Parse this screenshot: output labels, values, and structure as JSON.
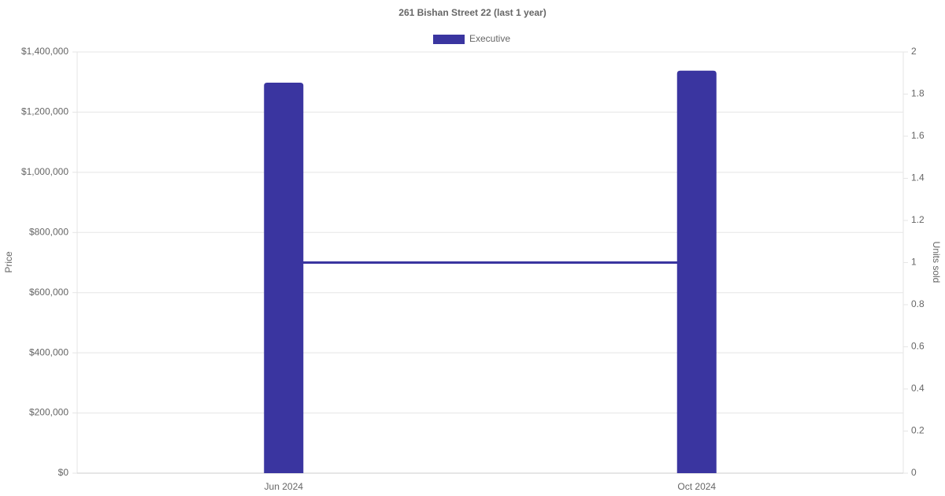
{
  "chart_data": {
    "type": "bar",
    "title": "261 Bishan Street 22 (last 1 year)",
    "categories": [
      "Jun 2024",
      "Oct 2024"
    ],
    "series": [
      {
        "name": "Executive",
        "type": "bar",
        "color": "#3a35a0",
        "values": [
          1298000,
          1338000
        ]
      },
      {
        "type": "line",
        "axis": "y2",
        "color": "#3a35a0",
        "values": [
          1,
          1
        ]
      }
    ],
    "ylabel": "Price",
    "y2label": "Units sold",
    "ylim": [
      0,
      1400000
    ],
    "yticks": [
      {
        "value": 0,
        "label": "$0"
      },
      {
        "value": 200000,
        "label": "$200,000"
      },
      {
        "value": 400000,
        "label": "$400,000"
      },
      {
        "value": 600000,
        "label": "$600,000"
      },
      {
        "value": 800000,
        "label": "$800,000"
      },
      {
        "value": 1000000,
        "label": "$1,000,000"
      },
      {
        "value": 1200000,
        "label": "$1,200,000"
      },
      {
        "value": 1400000,
        "label": "$1,400,000"
      }
    ],
    "y2lim": [
      0,
      2
    ],
    "y2ticks": [
      0,
      0.2,
      0.4,
      0.6,
      0.8,
      1,
      1.2,
      1.4,
      1.6,
      1.8,
      2
    ],
    "grid": true,
    "legend": "top"
  }
}
